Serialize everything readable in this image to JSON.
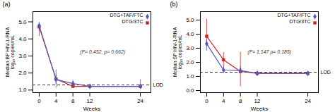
{
  "chart_data": [
    {
      "type": "line",
      "title": "(a)",
      "xlabel": "Weeks",
      "ylabel": "Median BP HIV-1-RNA\nlog₁₀ copies/mL",
      "x": [
        0,
        4,
        8,
        12,
        24
      ],
      "xlim": [
        -1.5,
        26.5
      ],
      "xticks": [
        0,
        4,
        8,
        12,
        24
      ],
      "ylim": [
        0.85,
        5.6
      ],
      "yticks": [
        1,
        2,
        3,
        4,
        5
      ],
      "legend": "upper right",
      "series": [
        {
          "name": "DTG+TAF/FTC",
          "color": "#5555bb",
          "marker": "diamond",
          "values": [
            4.78,
            1.62,
            1.38,
            1.22,
            1.22
          ],
          "yerr_low": [
            0.3,
            0.5,
            0.18,
            0.1,
            0.1
          ],
          "yerr_high": [
            0.2,
            0.58,
            0.2,
            0.1,
            0.38
          ]
        },
        {
          "name": "DTG/3TC",
          "color": "#cc2222",
          "marker": "square",
          "values": [
            4.7,
            1.65,
            1.22,
            1.22,
            1.22
          ],
          "yerr_low": [
            0.55,
            0.3,
            0.1,
            0.1,
            0.1
          ],
          "yerr_high": [
            0.12,
            0.28,
            0.1,
            0.1,
            0.1
          ]
        }
      ],
      "hlines": [
        {
          "y": 1.3,
          "label": "LOD",
          "color": "black",
          "line_style": "dashed"
        }
      ],
      "annotations": [
        {
          "text": "(F= 0.452, p= 0.662)"
        }
      ]
    },
    {
      "type": "line",
      "title": "(b)",
      "xlabel": "Weeks",
      "ylabel": "Median SP HIV-1-RNA\nlog₁₀ copies/mL",
      "x": [
        0,
        4,
        8,
        12,
        24
      ],
      "xlim": [
        -1.5,
        26.5
      ],
      "xticks": [
        0,
        4,
        8,
        12,
        24
      ],
      "ylim": [
        -0.15,
        5.6
      ],
      "yticks": [
        0,
        1,
        2,
        3,
        4,
        5
      ],
      "legend": "upper right",
      "series": [
        {
          "name": "DTG+TAF/FTC",
          "color": "#5555bb",
          "marker": "diamond",
          "values": [
            3.32,
            1.45,
            1.42,
            1.22,
            1.22
          ],
          "yerr_low": [
            0.5,
            0.22,
            0.22,
            0.08,
            0.08
          ],
          "yerr_high": [
            0.28,
            0.22,
            0.28,
            0.08,
            0.08
          ]
        },
        {
          "name": "DTG/3TC",
          "color": "#cc2222",
          "marker": "square",
          "values": [
            3.85,
            2.18,
            1.35,
            1.22,
            1.22
          ],
          "yerr_low": [
            0.45,
            0.82,
            1.08,
            0.1,
            0.1
          ],
          "yerr_high": [
            1.22,
            0.52,
            1.38,
            0.1,
            0.1
          ]
        }
      ],
      "hlines": [
        {
          "y": 1.3,
          "label": "LOD",
          "color": "black",
          "line_style": "dashed"
        }
      ],
      "annotations": [
        {
          "text": "(F= 1.147 p= 0.185)"
        }
      ]
    }
  ]
}
